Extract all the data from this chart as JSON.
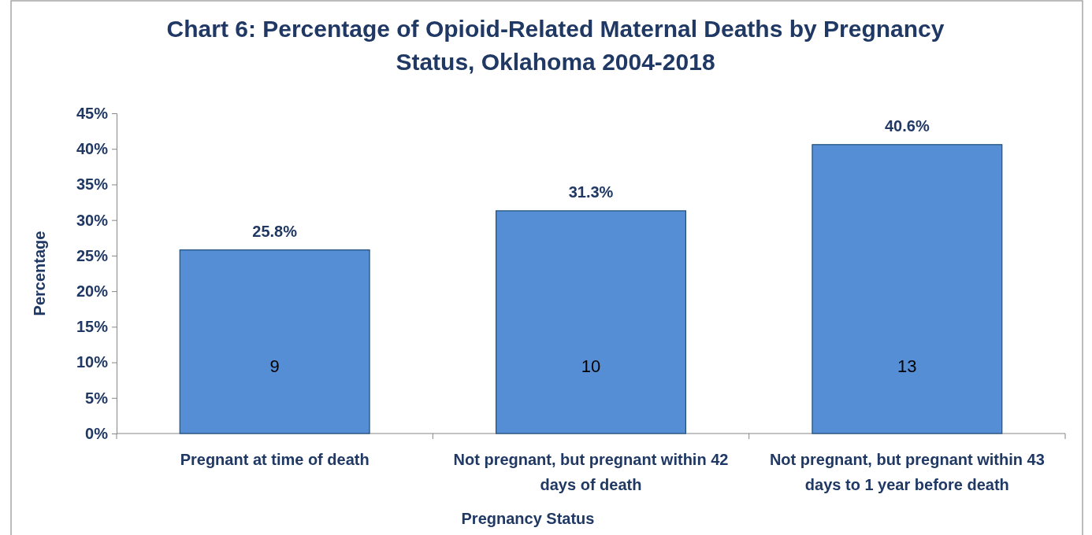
{
  "chart_data": {
    "type": "bar",
    "title": "Chart 6: Percentage of Opioid-Related Maternal Deaths by Pregnancy Status, Oklahoma 2004-2018",
    "xlabel": "Pregnancy Status",
    "ylabel": "Percentage",
    "categories": [
      "Pregnant at time of death",
      "Not pregnant, but pregnant within 42 days of death",
      "Not pregnant, but pregnant within 43 days to 1 year before death"
    ],
    "values": [
      25.8,
      31.3,
      40.6
    ],
    "color": "#558ed5",
    "value_labels": [
      "25.8%",
      "31.3%",
      "40.6%"
    ],
    "annotations": [
      "9",
      "10",
      "13"
    ],
    "ylim": [
      0,
      45
    ],
    "yticks": [
      {
        "value": 0,
        "label": "0%"
      },
      {
        "value": 5,
        "label": "5%"
      },
      {
        "value": 10,
        "label": "10%"
      },
      {
        "value": 15,
        "label": "15%"
      },
      {
        "value": 20,
        "label": "20%"
      },
      {
        "value": 25,
        "label": "25%"
      },
      {
        "value": 30,
        "label": "30%"
      },
      {
        "value": 35,
        "label": "35%"
      },
      {
        "value": 40,
        "label": "40%"
      },
      {
        "value": 45,
        "label": "45%"
      }
    ],
    "grid": false
  }
}
